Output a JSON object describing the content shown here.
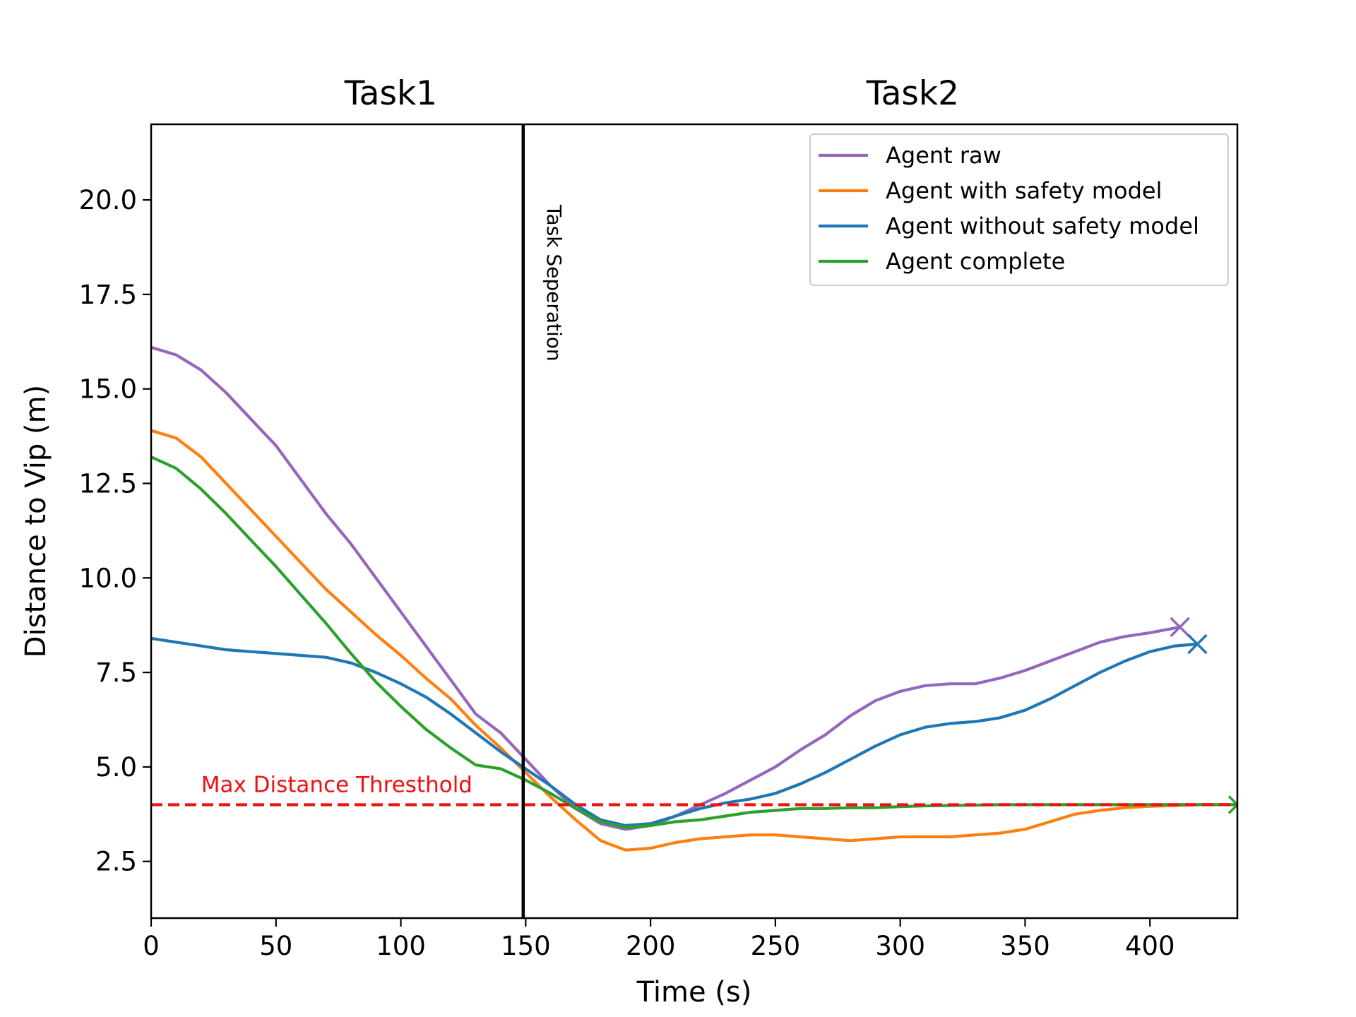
{
  "chart_data": {
    "type": "line",
    "xlabel": "Time (s)",
    "ylabel": "Distance to Vip (m)",
    "xlim": [
      0,
      435
    ],
    "ylim": [
      1.0,
      22.0
    ],
    "xticks": [
      0,
      50,
      100,
      150,
      200,
      250,
      300,
      350,
      400
    ],
    "yticks": [
      2.5,
      5.0,
      7.5,
      10.0,
      12.5,
      15.0,
      17.5,
      20.0
    ],
    "xtick_labels": [
      "0",
      "50",
      "100",
      "150",
      "200",
      "250",
      "300",
      "350",
      "400"
    ],
    "ytick_labels": [
      "2.5",
      "5.0",
      "7.5",
      "10.0",
      "12.5",
      "15.0",
      "17.5",
      "20.0"
    ],
    "grid": false,
    "legend_position": "top-right",
    "task_titles": [
      {
        "text": "Task1",
        "x": 96
      },
      {
        "text": "Task2",
        "x": 305
      }
    ],
    "task_separation": {
      "x": 149,
      "label": "Task Seperation",
      "color": "#000000"
    },
    "threshold": {
      "y": 4.0,
      "label": "Max Distance Thresthold",
      "label_x": 20,
      "color": "#ee1111"
    },
    "series": [
      {
        "name": "Agent raw",
        "color": "#9467bd",
        "marker": "x",
        "x": [
          0,
          10,
          20,
          30,
          40,
          50,
          60,
          70,
          80,
          90,
          100,
          110,
          120,
          130,
          140,
          150,
          160,
          170,
          180,
          190,
          200,
          210,
          220,
          230,
          240,
          250,
          260,
          270,
          280,
          290,
          300,
          310,
          320,
          330,
          340,
          350,
          360,
          370,
          380,
          390,
          400,
          412
        ],
        "y": [
          16.1,
          15.9,
          15.5,
          14.9,
          14.2,
          13.5,
          12.6,
          11.7,
          10.9,
          10.0,
          9.1,
          8.2,
          7.3,
          6.4,
          5.9,
          5.2,
          4.5,
          3.9,
          3.5,
          3.35,
          3.45,
          3.7,
          4.0,
          4.3,
          4.65,
          5.0,
          5.45,
          5.85,
          6.35,
          6.75,
          7.0,
          7.15,
          7.2,
          7.2,
          7.35,
          7.55,
          7.8,
          8.05,
          8.3,
          8.45,
          8.55,
          8.7
        ]
      },
      {
        "name": "Agent with safety model",
        "color": "#ff7f0e",
        "marker": "",
        "x": [
          0,
          10,
          20,
          30,
          40,
          50,
          60,
          70,
          80,
          90,
          100,
          110,
          120,
          130,
          140,
          150,
          160,
          170,
          180,
          190,
          200,
          210,
          220,
          230,
          240,
          250,
          260,
          270,
          280,
          290,
          300,
          310,
          320,
          330,
          340,
          350,
          360,
          370,
          380,
          390,
          400,
          410,
          420,
          430,
          435
        ],
        "y": [
          13.9,
          13.7,
          13.2,
          12.5,
          11.8,
          11.1,
          10.4,
          9.7,
          9.1,
          8.5,
          7.95,
          7.35,
          6.8,
          6.1,
          5.5,
          4.85,
          4.2,
          3.6,
          3.05,
          2.8,
          2.85,
          3.0,
          3.1,
          3.15,
          3.2,
          3.2,
          3.15,
          3.1,
          3.05,
          3.1,
          3.15,
          3.15,
          3.15,
          3.2,
          3.25,
          3.35,
          3.55,
          3.75,
          3.85,
          3.92,
          3.96,
          3.98,
          4.0,
          4.0,
          4.0
        ]
      },
      {
        "name": "Agent without safety model",
        "color": "#1f77b4",
        "marker": "x",
        "x": [
          0,
          10,
          20,
          30,
          40,
          50,
          60,
          70,
          80,
          90,
          100,
          110,
          120,
          130,
          140,
          150,
          160,
          170,
          180,
          190,
          200,
          210,
          220,
          230,
          240,
          250,
          260,
          270,
          280,
          290,
          300,
          310,
          320,
          330,
          340,
          350,
          360,
          370,
          380,
          390,
          400,
          410,
          419
        ],
        "y": [
          8.4,
          8.3,
          8.2,
          8.1,
          8.05,
          8.0,
          7.95,
          7.9,
          7.75,
          7.5,
          7.2,
          6.85,
          6.4,
          5.9,
          5.4,
          4.95,
          4.5,
          4.0,
          3.6,
          3.45,
          3.5,
          3.7,
          3.9,
          4.05,
          4.15,
          4.3,
          4.55,
          4.85,
          5.2,
          5.55,
          5.85,
          6.05,
          6.15,
          6.2,
          6.3,
          6.5,
          6.8,
          7.15,
          7.5,
          7.8,
          8.05,
          8.2,
          8.25
        ]
      },
      {
        "name": "Agent complete",
        "color": "#2ca02c",
        "marker": ">",
        "x": [
          0,
          10,
          20,
          30,
          40,
          50,
          60,
          70,
          80,
          90,
          100,
          110,
          120,
          130,
          140,
          150,
          160,
          170,
          180,
          190,
          200,
          210,
          220,
          230,
          240,
          250,
          260,
          270,
          280,
          290,
          300,
          310,
          320,
          330,
          340,
          350,
          360,
          370,
          380,
          390,
          400,
          410,
          420,
          430,
          435
        ],
        "y": [
          13.2,
          12.9,
          12.35,
          11.7,
          11.0,
          10.3,
          9.55,
          8.8,
          8.0,
          7.25,
          6.6,
          6.0,
          5.5,
          5.05,
          4.95,
          4.65,
          4.3,
          3.9,
          3.55,
          3.4,
          3.45,
          3.55,
          3.6,
          3.7,
          3.8,
          3.85,
          3.9,
          3.9,
          3.92,
          3.92,
          3.95,
          3.97,
          3.98,
          3.99,
          4.0,
          4.0,
          4.0,
          4.0,
          4.0,
          4.0,
          4.0,
          4.0,
          4.0,
          4.0,
          4.0
        ]
      }
    ]
  }
}
